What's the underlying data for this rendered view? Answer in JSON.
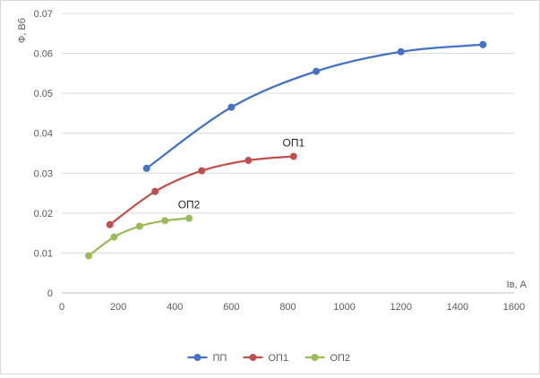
{
  "chart_data": {
    "type": "line",
    "title": "",
    "xlabel": "Iв, А",
    "ylabel": "Ф, Вб",
    "xlim": [
      0,
      1600
    ],
    "ylim": [
      0,
      0.07
    ],
    "x_ticks": [
      "0",
      "200",
      "400",
      "600",
      "800",
      "1000",
      "1200",
      "1400",
      "1600"
    ],
    "y_ticks": [
      "0",
      "0.01",
      "0.02",
      "0.03",
      "0.04",
      "0.05",
      "0.06",
      "0.07"
    ],
    "grid": "horizontal",
    "legend_position": "bottom",
    "smooth": true,
    "series": [
      {
        "name": "ПП",
        "color": "#4472c4",
        "x": [
          300,
          600,
          900,
          1200,
          1490
        ],
        "y": [
          0.0312,
          0.0465,
          0.0555,
          0.0604,
          0.0622
        ]
      },
      {
        "name": "ОП1",
        "color": "#c0504d",
        "x": [
          170,
          330,
          495,
          660,
          820
        ],
        "y": [
          0.0171,
          0.0254,
          0.0306,
          0.0332,
          0.0342
        ]
      },
      {
        "name": "ОП2",
        "color": "#9bbb59",
        "x": [
          95,
          185,
          275,
          365,
          450
        ],
        "y": [
          0.0093,
          0.014,
          0.0167,
          0.0181,
          0.0187
        ]
      }
    ],
    "annotations": [
      {
        "text": "ОП1",
        "x": 820,
        "y": 0.0342
      },
      {
        "text": "ОП2",
        "x": 450,
        "y": 0.0187
      }
    ]
  }
}
